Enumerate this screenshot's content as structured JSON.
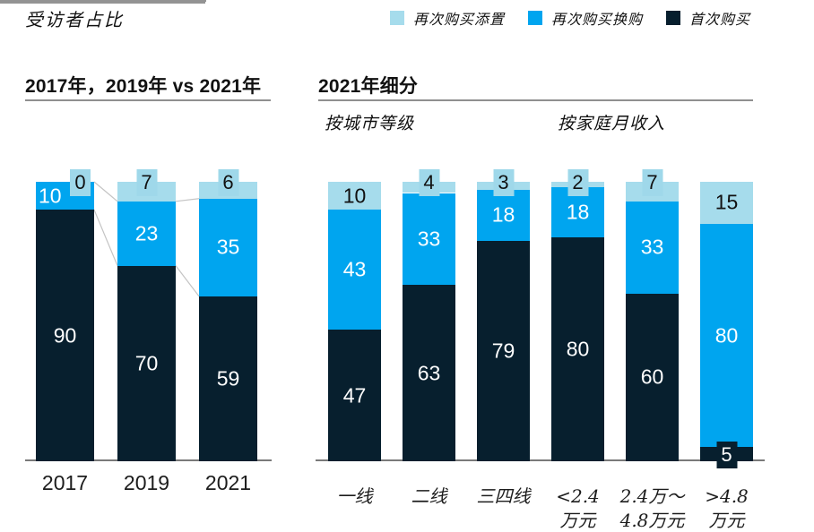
{
  "title": "受访者占比",
  "legend": {
    "items": [
      {
        "label": "再次购买添置",
        "color": "#a6dcec"
      },
      {
        "label": "再次购买换购",
        "color": "#00a5ef"
      },
      {
        "label": "首次购买",
        "color": "#071f2e"
      }
    ]
  },
  "colors": {
    "first_purchase": "#071f2e",
    "repurchase_upgrade": "#00a5ef",
    "repurchase_addon": "#a6dcec",
    "connector": "#c4c4c4",
    "baseline": "#7a7a7a",
    "text": "#111111"
  },
  "chart_data": [
    {
      "type": "bar",
      "stacked": true,
      "title": "2017年，2019年 vs 2021年",
      "categories": [
        "2017",
        "2019",
        "2021"
      ],
      "category_lines": [
        [
          "2017"
        ],
        [
          "2019"
        ],
        [
          "2021"
        ]
      ],
      "series": [
        {
          "name": "首次购买",
          "color": "#071f2e",
          "label_color": "#ffffff",
          "values": [
            90,
            70,
            59
          ]
        },
        {
          "name": "再次购买换购",
          "color": "#00a5ef",
          "label_color": "#ffffff",
          "values": [
            10,
            23,
            35
          ]
        },
        {
          "name": "再次购买添置",
          "color": "#a6dcec",
          "label_color": "#111111",
          "values": [
            0,
            7,
            6
          ]
        }
      ],
      "ylim": [
        0,
        100
      ],
      "connectors": true,
      "label_overrides": [
        {
          "bar": 0,
          "series": 1,
          "align": "left"
        },
        {
          "bar": 0,
          "series": 2,
          "tab_align": "right"
        }
      ]
    },
    {
      "type": "bar",
      "stacked": true,
      "title": "2021年细分",
      "groups": [
        {
          "label": "按城市等级",
          "categories": [
            "一线",
            "二线",
            "三四线"
          ]
        },
        {
          "label": "按家庭月收入",
          "categories": [
            "<2.4万元",
            "2.4万～4.8万元",
            ">4.8万元"
          ]
        }
      ],
      "categories": [
        "一线",
        "二线",
        "三四线",
        "<2.4万元",
        "2.4万～4.8万元",
        ">4.8万元"
      ],
      "category_lines": [
        [
          "一线"
        ],
        [
          "二线"
        ],
        [
          "三四线"
        ],
        [
          "<2.4",
          "万元"
        ],
        [
          "2.4万～",
          "4.8万元"
        ],
        [
          ">4.8",
          "万元"
        ]
      ],
      "series": [
        {
          "name": "首次购买",
          "color": "#071f2e",
          "label_color": "#ffffff",
          "values": [
            47,
            63,
            79,
            80,
            60,
            5
          ]
        },
        {
          "name": "再次购买换购",
          "color": "#00a5ef",
          "label_color": "#ffffff",
          "values": [
            43,
            33,
            18,
            18,
            33,
            80
          ]
        },
        {
          "name": "再次购买添置",
          "color": "#a6dcec",
          "label_color": "#111111",
          "values": [
            10,
            4,
            3,
            2,
            7,
            15
          ]
        }
      ],
      "ylim": [
        0,
        100
      ],
      "connectors": false,
      "label_overrides": []
    }
  ]
}
